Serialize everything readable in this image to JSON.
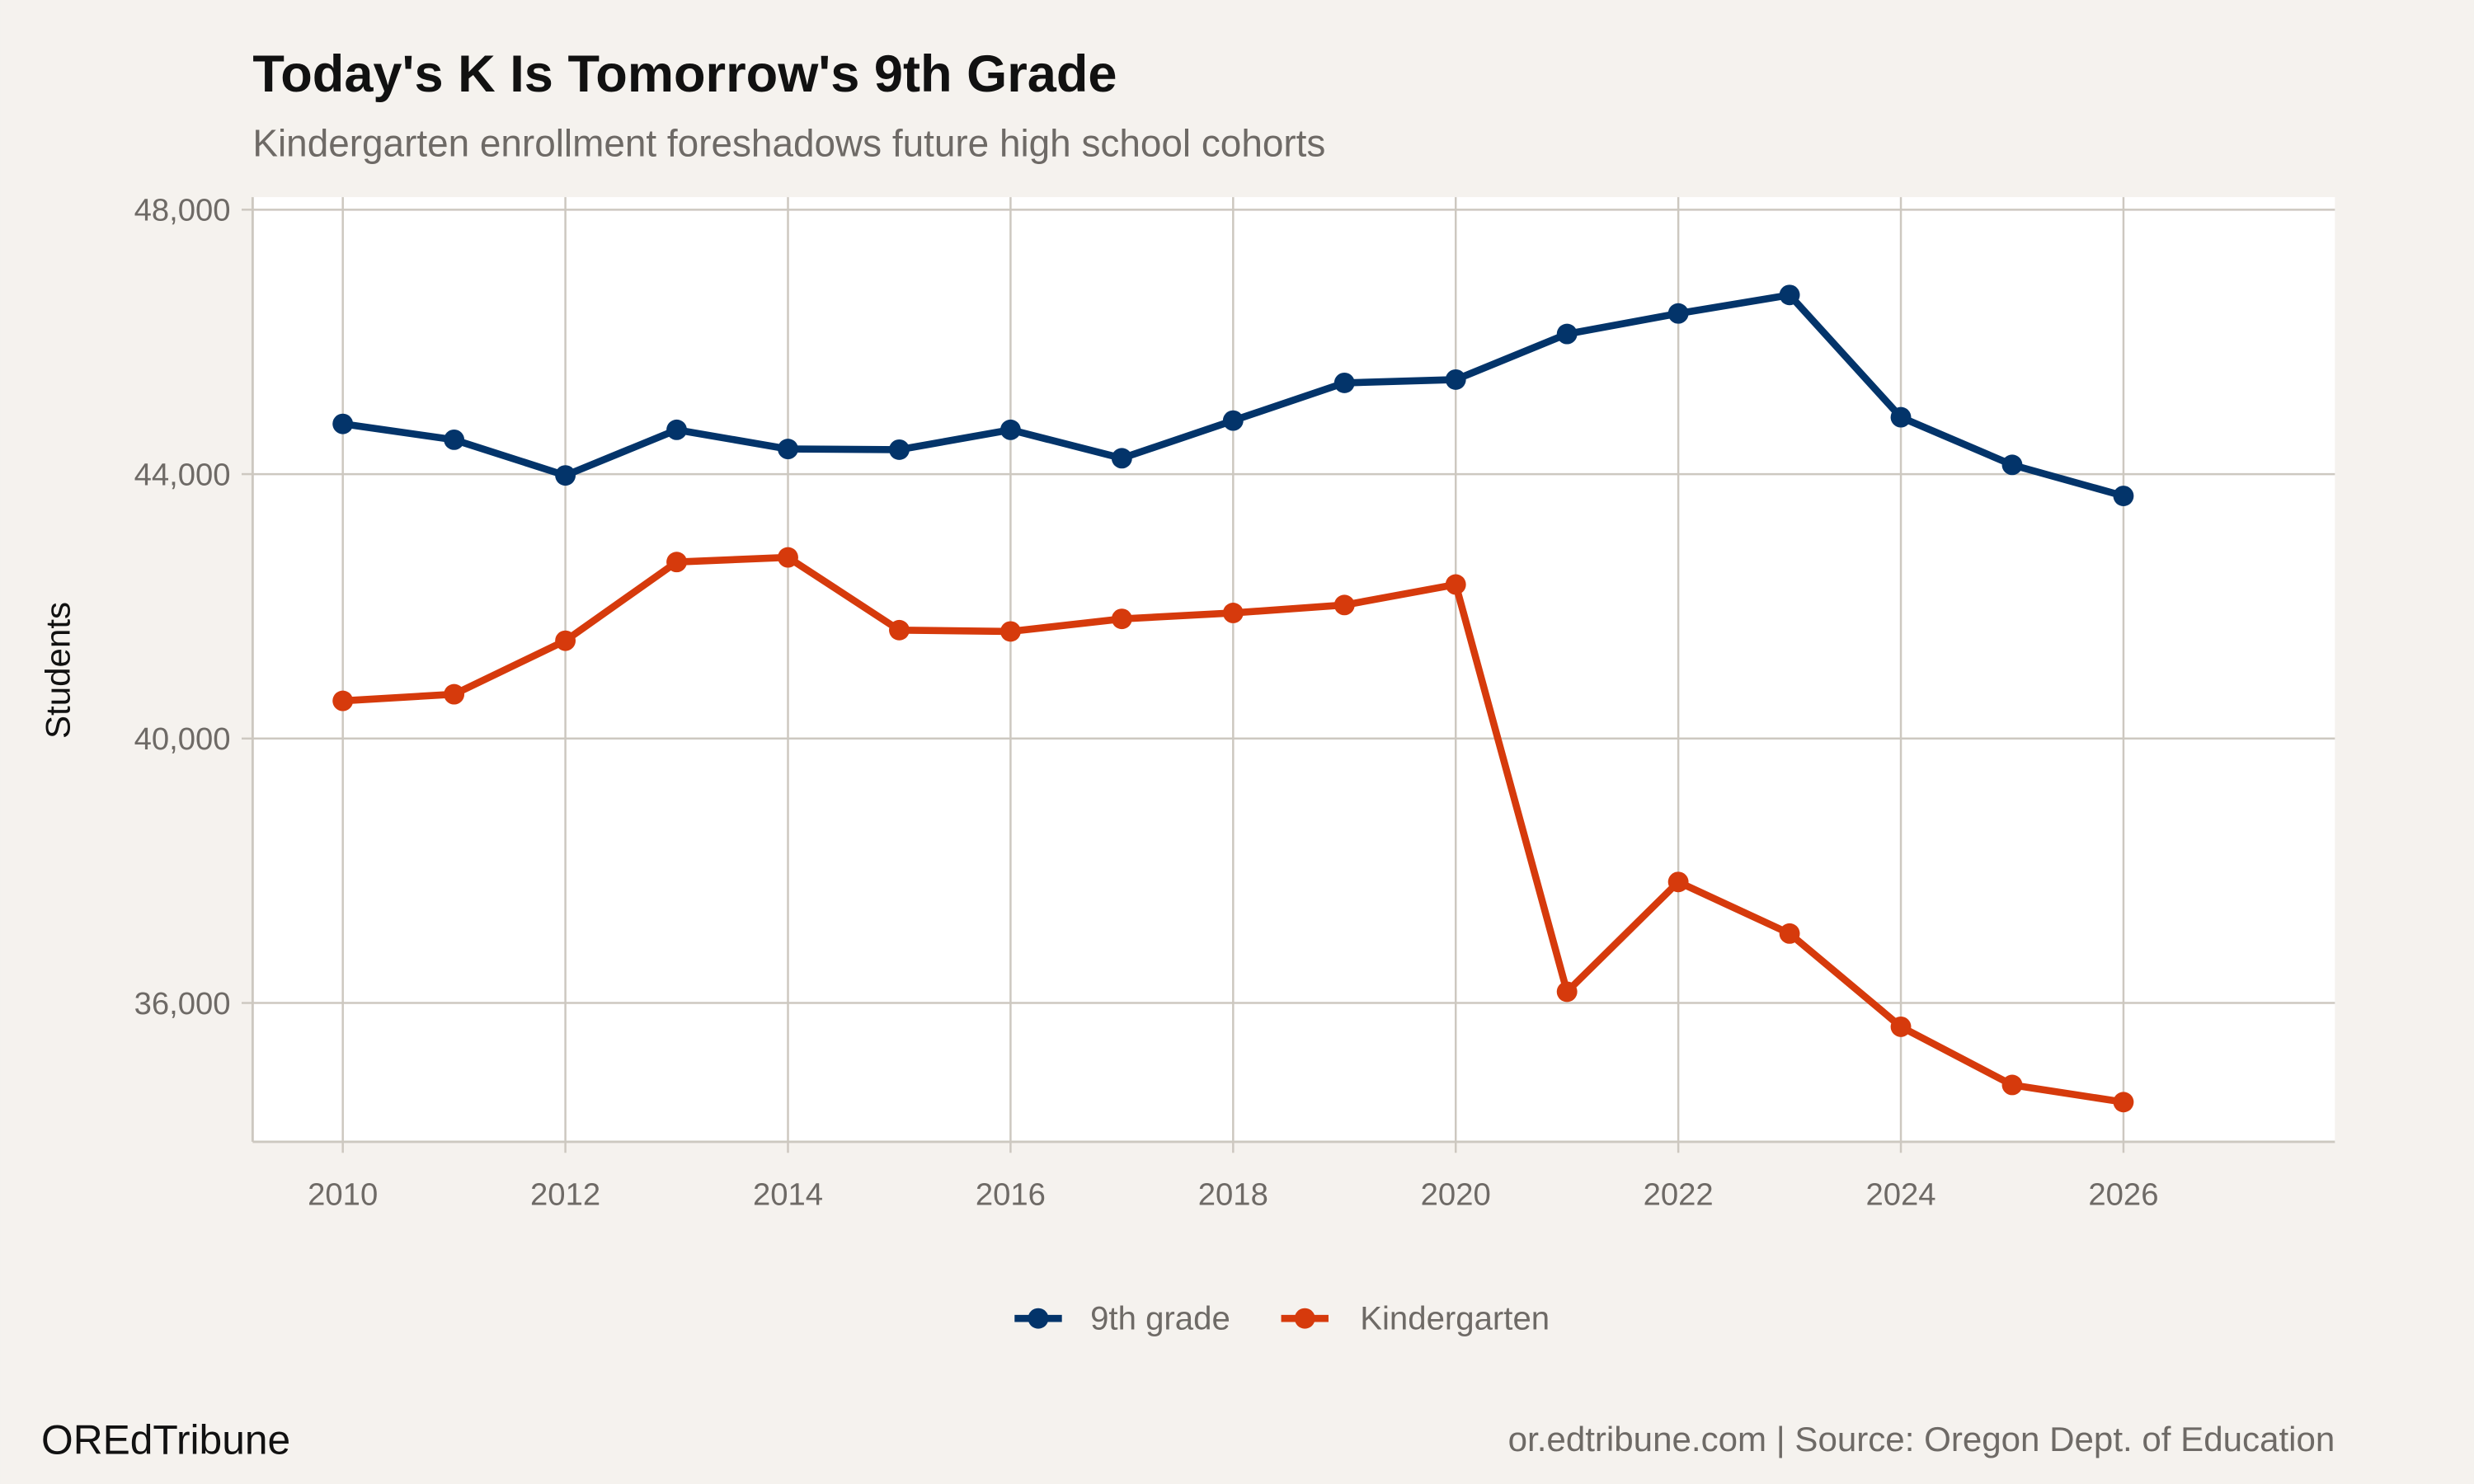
{
  "colors": {
    "background": "#f5f2ee",
    "panel": "#ffffff",
    "grid": "#cdc8c0",
    "ninth": "#03346a",
    "kinder": "#d63a0c"
  },
  "footer": {
    "brand": "OREdTribune",
    "source": "or.edtribune.com | Source: Oregon Dept. of Education"
  },
  "chart_data": {
    "type": "line",
    "title": "Today's K Is Tomorrow's 9th Grade",
    "subtitle": "Kindergarten enrollment foreshadows future high school cohorts",
    "xlabel": "",
    "ylabel": "Students",
    "xlim": [
      2009.19,
      2027.9
    ],
    "ylim": [
      33900,
      48190
    ],
    "x_ticks": [
      2010,
      2012,
      2014,
      2016,
      2018,
      2020,
      2022,
      2024,
      2026
    ],
    "x_tick_labels": [
      "2010",
      "2012",
      "2014",
      "2016",
      "2018",
      "2020",
      "2022",
      "2024",
      "2026"
    ],
    "y_ticks": [
      36000,
      40000,
      44000,
      48000
    ],
    "y_tick_labels": [
      "36,000",
      "40,000",
      "44,000",
      "48,000"
    ],
    "grid": true,
    "legend_position": "bottom",
    "x": [
      2010,
      2011,
      2012,
      2013,
      2014,
      2015,
      2016,
      2017,
      2018,
      2019,
      2020,
      2021,
      2022,
      2023,
      2024,
      2025,
      2026
    ],
    "series": [
      {
        "name": "9th grade",
        "color": "#03346a",
        "values": [
          44760,
          44520,
          43980,
          44670,
          44380,
          44370,
          44670,
          44240,
          44810,
          45380,
          45430,
          46120,
          46430,
          46710,
          44860,
          44140,
          43670
        ]
      },
      {
        "name": "Kindergarten",
        "color": "#d63a0c",
        "values": [
          40570,
          40670,
          41480,
          42670,
          42740,
          41640,
          41620,
          41810,
          41900,
          42020,
          42330,
          36170,
          37830,
          37050,
          35640,
          34760,
          34500
        ]
      }
    ]
  }
}
